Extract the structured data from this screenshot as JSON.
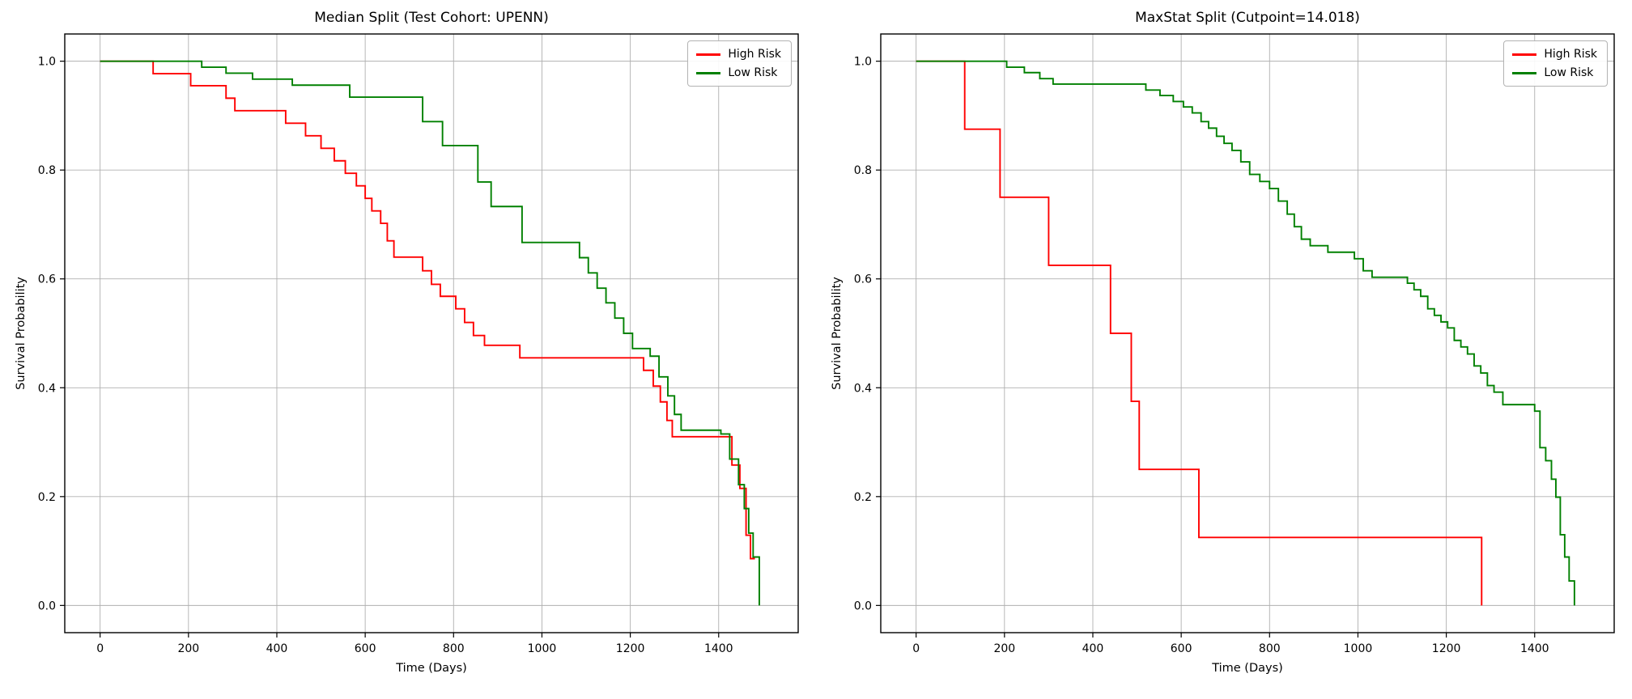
{
  "chart_data": [
    {
      "type": "line",
      "subtype": "kaplan-meier-step",
      "title": "Median Split (Test Cohort: UPENN)",
      "xlabel": "Time (Days)",
      "ylabel": "Survival Probability",
      "xlim": [
        -80,
        1580
      ],
      "ylim": [
        -0.05,
        1.05
      ],
      "xticks": [
        0,
        200,
        400,
        600,
        800,
        1000,
        1200,
        1400
      ],
      "yticks": [
        0.0,
        0.2,
        0.4,
        0.6,
        0.8,
        1.0
      ],
      "grid": true,
      "grid_color": "#b0b0b0",
      "legend_position": "upper right",
      "series": [
        {
          "name": "High Risk",
          "color": "#ff0000",
          "step": "post",
          "points": [
            [
              0,
              1.0
            ],
            [
              120,
              0.977
            ],
            [
              205,
              0.955
            ],
            [
              285,
              0.932
            ],
            [
              305,
              0.909
            ],
            [
              420,
              0.886
            ],
            [
              465,
              0.863
            ],
            [
              500,
              0.84
            ],
            [
              530,
              0.817
            ],
            [
              555,
              0.794
            ],
            [
              580,
              0.771
            ],
            [
              600,
              0.748
            ],
            [
              615,
              0.725
            ],
            [
              635,
              0.702
            ],
            [
              650,
              0.67
            ],
            [
              665,
              0.64
            ],
            [
              730,
              0.615
            ],
            [
              750,
              0.59
            ],
            [
              770,
              0.568
            ],
            [
              805,
              0.545
            ],
            [
              825,
              0.52
            ],
            [
              845,
              0.496
            ],
            [
              870,
              0.478
            ],
            [
              950,
              0.455
            ],
            [
              1230,
              0.432
            ],
            [
              1252,
              0.403
            ],
            [
              1268,
              0.374
            ],
            [
              1283,
              0.34
            ],
            [
              1295,
              0.31
            ],
            [
              1430,
              0.258
            ],
            [
              1448,
              0.215
            ],
            [
              1462,
              0.129
            ],
            [
              1472,
              0.086
            ],
            [
              1482,
              0.086
            ]
          ]
        },
        {
          "name": "Low Risk",
          "color": "#008000",
          "step": "post",
          "points": [
            [
              0,
              1.0
            ],
            [
              230,
              0.989
            ],
            [
              285,
              0.978
            ],
            [
              345,
              0.967
            ],
            [
              435,
              0.956
            ],
            [
              565,
              0.934
            ],
            [
              730,
              0.889
            ],
            [
              775,
              0.845
            ],
            [
              855,
              0.778
            ],
            [
              885,
              0.733
            ],
            [
              955,
              0.667
            ],
            [
              1085,
              0.639
            ],
            [
              1105,
              0.611
            ],
            [
              1125,
              0.583
            ],
            [
              1145,
              0.556
            ],
            [
              1165,
              0.528
            ],
            [
              1185,
              0.5
            ],
            [
              1205,
              0.472
            ],
            [
              1245,
              0.458
            ],
            [
              1265,
              0.42
            ],
            [
              1285,
              0.385
            ],
            [
              1300,
              0.351
            ],
            [
              1315,
              0.322
            ],
            [
              1405,
              0.315
            ],
            [
              1425,
              0.269
            ],
            [
              1445,
              0.222
            ],
            [
              1458,
              0.178
            ],
            [
              1468,
              0.133
            ],
            [
              1478,
              0.089
            ],
            [
              1492,
              0.0
            ]
          ]
        }
      ]
    },
    {
      "type": "line",
      "subtype": "kaplan-meier-step",
      "title": "MaxStat Split (Cutpoint=14.018)",
      "xlabel": "Time (Days)",
      "ylabel": "Survival Probability",
      "xlim": [
        -80,
        1580
      ],
      "ylim": [
        -0.05,
        1.05
      ],
      "xticks": [
        0,
        200,
        400,
        600,
        800,
        1000,
        1200,
        1400
      ],
      "yticks": [
        0.0,
        0.2,
        0.4,
        0.6,
        0.8,
        1.0
      ],
      "grid": true,
      "grid_color": "#b0b0b0",
      "legend_position": "upper right",
      "series": [
        {
          "name": "High Risk",
          "color": "#ff0000",
          "step": "post",
          "points": [
            [
              0,
              1.0
            ],
            [
              110,
              0.875
            ],
            [
              190,
              0.75
            ],
            [
              300,
              0.625
            ],
            [
              440,
              0.5
            ],
            [
              487,
              0.375
            ],
            [
              505,
              0.25
            ],
            [
              640,
              0.125
            ],
            [
              1280,
              0.0
            ]
          ]
        },
        {
          "name": "Low Risk",
          "color": "#008000",
          "step": "post",
          "points": [
            [
              0,
              1.0
            ],
            [
              205,
              0.989
            ],
            [
              245,
              0.979
            ],
            [
              280,
              0.968
            ],
            [
              310,
              0.958
            ],
            [
              520,
              0.947
            ],
            [
              552,
              0.937
            ],
            [
              582,
              0.926
            ],
            [
              605,
              0.916
            ],
            [
              625,
              0.905
            ],
            [
              645,
              0.889
            ],
            [
              662,
              0.877
            ],
            [
              680,
              0.862
            ],
            [
              697,
              0.849
            ],
            [
              715,
              0.836
            ],
            [
              735,
              0.815
            ],
            [
              755,
              0.792
            ],
            [
              778,
              0.779
            ],
            [
              800,
              0.766
            ],
            [
              820,
              0.743
            ],
            [
              840,
              0.719
            ],
            [
              856,
              0.696
            ],
            [
              872,
              0.673
            ],
            [
              892,
              0.661
            ],
            [
              932,
              0.649
            ],
            [
              992,
              0.637
            ],
            [
              1012,
              0.615
            ],
            [
              1032,
              0.603
            ],
            [
              1112,
              0.592
            ],
            [
              1127,
              0.58
            ],
            [
              1142,
              0.568
            ],
            [
              1158,
              0.545
            ],
            [
              1173,
              0.533
            ],
            [
              1188,
              0.521
            ],
            [
              1203,
              0.51
            ],
            [
              1218,
              0.487
            ],
            [
              1233,
              0.475
            ],
            [
              1248,
              0.462
            ],
            [
              1263,
              0.44
            ],
            [
              1278,
              0.427
            ],
            [
              1293,
              0.404
            ],
            [
              1308,
              0.392
            ],
            [
              1328,
              0.369
            ],
            [
              1400,
              0.357
            ],
            [
              1412,
              0.29
            ],
            [
              1425,
              0.266
            ],
            [
              1438,
              0.232
            ],
            [
              1448,
              0.199
            ],
            [
              1458,
              0.13
            ],
            [
              1468,
              0.089
            ],
            [
              1478,
              0.045
            ],
            [
              1490,
              0.0
            ]
          ]
        }
      ]
    }
  ]
}
